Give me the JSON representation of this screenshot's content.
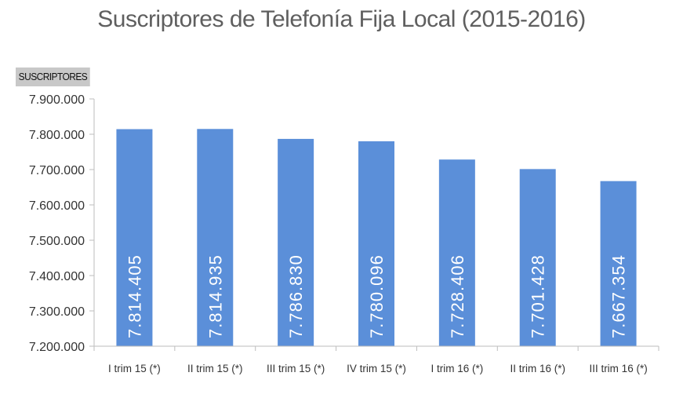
{
  "chart_data": {
    "type": "bar",
    "title": "Suscriptores de Telefonía Fija Local (2015-2016)",
    "ylabel": "SUSCRIPTORES",
    "xlabel": "",
    "categories": [
      "I trim 15 (*)",
      "II trim 15 (*)",
      "III trim 15 (*)",
      "IV trim 15 (*)",
      "I trim 16 (*)",
      "II trim 16 (*)",
      "III trim 16 (*)"
    ],
    "values": [
      7814405,
      7814935,
      7786830,
      7780096,
      7728406,
      7701428,
      7667354
    ],
    "value_labels": [
      "7.814.405",
      "7.814.935",
      "7.786.830",
      "7.780.096",
      "7.728.406",
      "7.701.428",
      "7.667.354"
    ],
    "ylim": [
      7200000,
      7900000
    ],
    "yticks": [
      7200000,
      7300000,
      7400000,
      7500000,
      7600000,
      7700000,
      7800000,
      7900000
    ],
    "ytick_labels": [
      "7.200.000",
      "7.300.000",
      "7.400.000",
      "7.500.000",
      "7.600.000",
      "7.700.000",
      "7.800.000",
      "7.900.000"
    ],
    "grid": false,
    "bar_color": "#5b8fd9",
    "axis_color": "#bdbdbd"
  }
}
